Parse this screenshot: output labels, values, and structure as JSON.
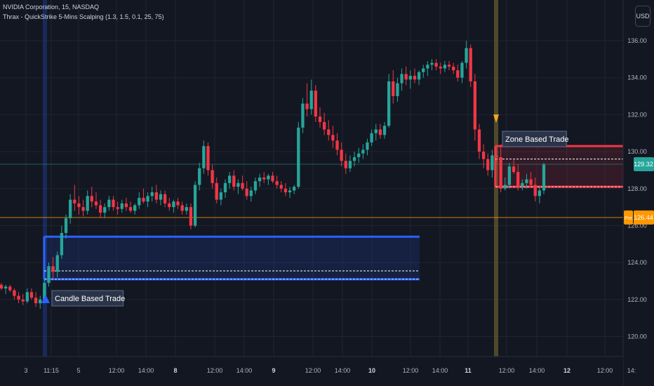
{
  "header": {
    "symbol_line": "NVIDIA Corporation, 15, NASDAQ",
    "indicator_line": "Thrax - QuickStrike 5-Mins Scalping (1.3, 1.5, 0.1, 25, 75)"
  },
  "currency_button": "USD",
  "colors": {
    "background": "#131722",
    "grid": "#1f2430",
    "up": "#26a69a",
    "down": "#f23645",
    "axis_text": "#b2b5be",
    "zone_blue": "#2962ff",
    "zone_red": "#f23645",
    "session_highlight": "#665b2c",
    "session_highlight_blue": "#1e3a8a",
    "prev_close_line": "#ff9800"
  },
  "chart_data": {
    "type": "candlestick",
    "symbol": "NVIDIA Corporation",
    "interval": "15",
    "exchange": "NASDAQ",
    "y_axis": {
      "ticks": [
        "120.00",
        "122.00",
        "124.00",
        "126.00",
        "128.00",
        "130.00",
        "132.00",
        "134.00",
        "136.00"
      ],
      "range": [
        119.2,
        137.0
      ]
    },
    "x_axis": {
      "ticks": [
        "3",
        "11:15",
        "5",
        "12:00",
        "14:00",
        "8",
        "12:00",
        "14:00",
        "9",
        "12:00",
        "14:00",
        "10",
        "12:00",
        "14:00",
        "11",
        "12:00",
        "14:00",
        "12",
        "12:00",
        "14:"
      ],
      "bold_ticks": [
        "8",
        "9",
        "10",
        "11",
        "12"
      ]
    },
    "price_labels": [
      {
        "text": "129.32",
        "value": 129.32,
        "style": "current"
      },
      {
        "text": "126.44",
        "value": 126.44,
        "style": "pre",
        "prefix": "Pre"
      }
    ],
    "annotations": [
      {
        "text": "Candle Based Trade",
        "type": "zone",
        "color": "blue",
        "upper": 125.4,
        "lower": 123.1,
        "entry": 123.55,
        "arrow": "up"
      },
      {
        "text": "Zone Based Trade",
        "type": "zone",
        "color": "red",
        "upper": 130.3,
        "lower": 128.1,
        "entry": 129.6,
        "arrow": "down"
      }
    ],
    "candles": [
      [
        122.8,
        122.9,
        122.5,
        122.6
      ],
      [
        122.6,
        122.8,
        122.3,
        122.7
      ],
      [
        122.7,
        122.8,
        122.4,
        122.5
      ],
      [
        122.5,
        122.6,
        122.0,
        122.2
      ],
      [
        122.2,
        122.4,
        121.8,
        122.0
      ],
      [
        122.0,
        122.3,
        121.7,
        121.9
      ],
      [
        121.9,
        122.6,
        121.8,
        122.4
      ],
      [
        122.4,
        122.6,
        122.0,
        122.1
      ],
      [
        122.1,
        122.4,
        121.6,
        121.8
      ],
      [
        121.8,
        122.2,
        121.5,
        122.0
      ],
      [
        122.0,
        123.2,
        121.8,
        122.9
      ],
      [
        122.9,
        124.0,
        122.7,
        123.8
      ],
      [
        123.8,
        124.3,
        123.1,
        123.5
      ],
      [
        123.5,
        124.6,
        123.2,
        124.4
      ],
      [
        124.4,
        126.0,
        124.2,
        125.6
      ],
      [
        125.6,
        126.6,
        125.3,
        126.4
      ],
      [
        126.4,
        127.7,
        126.1,
        127.4
      ],
      [
        127.4,
        128.2,
        126.8,
        127.2
      ],
      [
        127.2,
        127.6,
        126.6,
        127.0
      ],
      [
        127.0,
        127.4,
        126.5,
        126.8
      ],
      [
        126.8,
        127.9,
        126.6,
        127.6
      ],
      [
        127.6,
        128.1,
        127.0,
        127.3
      ],
      [
        127.3,
        127.8,
        126.9,
        127.1
      ],
      [
        127.1,
        127.4,
        126.4,
        126.7
      ],
      [
        126.7,
        127.2,
        126.4,
        127.0
      ],
      [
        127.0,
        127.6,
        126.8,
        127.4
      ],
      [
        127.4,
        127.6,
        126.8,
        127.0
      ],
      [
        127.0,
        127.3,
        126.6,
        126.9
      ],
      [
        126.9,
        127.4,
        126.7,
        127.2
      ],
      [
        127.2,
        127.5,
        126.8,
        127.0
      ],
      [
        127.0,
        127.3,
        126.7,
        126.8
      ],
      [
        126.8,
        127.2,
        126.6,
        127.1
      ],
      [
        127.1,
        127.8,
        126.9,
        127.5
      ],
      [
        127.5,
        128.0,
        127.2,
        127.3
      ],
      [
        127.3,
        127.8,
        127.0,
        127.6
      ],
      [
        127.6,
        128.1,
        127.3,
        127.8
      ],
      [
        127.8,
        128.2,
        127.2,
        127.4
      ],
      [
        127.4,
        127.9,
        127.1,
        127.7
      ],
      [
        127.7,
        127.9,
        127.0,
        127.2
      ],
      [
        127.2,
        127.5,
        126.8,
        127.0
      ],
      [
        127.0,
        127.4,
        126.7,
        127.3
      ],
      [
        127.3,
        127.5,
        126.9,
        127.1
      ],
      [
        127.1,
        127.3,
        126.6,
        126.8
      ],
      [
        126.8,
        127.2,
        126.6,
        127.0
      ],
      [
        127.0,
        127.2,
        125.8,
        126.0
      ],
      [
        126.0,
        128.4,
        125.9,
        128.2
      ],
      [
        128.2,
        129.4,
        127.9,
        129.1
      ],
      [
        129.1,
        130.6,
        128.8,
        130.3
      ],
      [
        130.3,
        130.5,
        128.7,
        129.0
      ],
      [
        129.0,
        129.3,
        128.0,
        128.3
      ],
      [
        128.3,
        128.6,
        127.2,
        127.4
      ],
      [
        127.4,
        128.0,
        127.1,
        127.8
      ],
      [
        127.8,
        128.5,
        127.5,
        128.3
      ],
      [
        128.3,
        128.9,
        128.0,
        128.7
      ],
      [
        128.7,
        129.0,
        127.9,
        128.1
      ],
      [
        128.1,
        128.5,
        127.7,
        128.3
      ],
      [
        128.3,
        128.7,
        127.9,
        128.0
      ],
      [
        128.0,
        128.4,
        127.4,
        127.6
      ],
      [
        127.6,
        128.1,
        127.3,
        127.9
      ],
      [
        127.9,
        128.6,
        127.7,
        128.4
      ],
      [
        128.4,
        128.8,
        128.1,
        128.6
      ],
      [
        128.6,
        128.9,
        128.3,
        128.5
      ],
      [
        128.5,
        128.8,
        128.2,
        128.7
      ],
      [
        128.7,
        128.9,
        128.3,
        128.4
      ],
      [
        128.4,
        128.7,
        128.0,
        128.2
      ],
      [
        128.2,
        128.4,
        127.8,
        128.0
      ],
      [
        128.0,
        128.3,
        127.6,
        127.8
      ],
      [
        127.8,
        128.1,
        127.5,
        127.9
      ],
      [
        127.9,
        128.2,
        127.7,
        128.1
      ],
      [
        128.1,
        131.6,
        128.0,
        131.3
      ],
      [
        131.3,
        132.9,
        131.0,
        132.6
      ],
      [
        132.6,
        133.7,
        131.9,
        132.3
      ],
      [
        132.3,
        133.9,
        132.0,
        133.3
      ],
      [
        133.3,
        133.6,
        131.6,
        131.9
      ],
      [
        131.9,
        132.4,
        131.3,
        131.6
      ],
      [
        131.6,
        132.1,
        130.9,
        131.2
      ],
      [
        131.2,
        131.7,
        130.6,
        130.9
      ],
      [
        130.9,
        131.4,
        130.2,
        130.6
      ],
      [
        130.6,
        131.0,
        129.8,
        130.1
      ],
      [
        130.1,
        130.5,
        129.2,
        129.5
      ],
      [
        129.5,
        129.9,
        128.8,
        129.1
      ],
      [
        129.1,
        129.8,
        128.9,
        129.5
      ],
      [
        129.5,
        130.0,
        129.2,
        129.7
      ],
      [
        129.7,
        130.2,
        129.4,
        129.9
      ],
      [
        129.9,
        130.4,
        129.6,
        130.1
      ],
      [
        130.1,
        130.7,
        129.8,
        130.5
      ],
      [
        130.5,
        131.2,
        130.3,
        131.0
      ],
      [
        131.0,
        131.5,
        130.6,
        131.2
      ],
      [
        131.2,
        131.5,
        130.7,
        130.9
      ],
      [
        130.9,
        131.6,
        130.7,
        131.4
      ],
      [
        131.4,
        134.2,
        131.3,
        133.8
      ],
      [
        133.8,
        134.4,
        132.6,
        133.0
      ],
      [
        133.0,
        134.0,
        132.7,
        133.7
      ],
      [
        133.7,
        134.5,
        133.3,
        134.2
      ],
      [
        134.2,
        134.6,
        133.6,
        133.9
      ],
      [
        133.9,
        134.4,
        133.4,
        134.1
      ],
      [
        134.1,
        134.5,
        133.7,
        133.9
      ],
      [
        133.9,
        134.4,
        133.6,
        134.3
      ],
      [
        134.3,
        134.7,
        134.0,
        134.5
      ],
      [
        134.5,
        134.9,
        134.1,
        134.7
      ],
      [
        134.7,
        135.0,
        134.4,
        134.8
      ],
      [
        134.8,
        135.0,
        134.4,
        134.6
      ],
      [
        134.6,
        134.8,
        134.2,
        134.5
      ],
      [
        134.5,
        134.9,
        134.3,
        134.7
      ],
      [
        134.7,
        134.9,
        134.4,
        134.6
      ],
      [
        134.6,
        134.8,
        134.2,
        134.4
      ],
      [
        134.4,
        134.7,
        133.8,
        134.0
      ],
      [
        134.0,
        134.9,
        133.7,
        134.8
      ],
      [
        134.8,
        136.0,
        134.5,
        135.6
      ],
      [
        135.6,
        135.8,
        133.5,
        133.8
      ],
      [
        133.8,
        134.2,
        130.6,
        131.2
      ],
      [
        131.2,
        131.5,
        129.6,
        130.0
      ],
      [
        130.0,
        130.4,
        129.1,
        129.6
      ],
      [
        129.6,
        129.9,
        128.7,
        129.0
      ],
      [
        129.0,
        130.1,
        128.6,
        129.8
      ],
      [
        129.8,
        130.3,
        129.4,
        129.7
      ],
      [
        129.7,
        130.4,
        127.8,
        128.0
      ],
      [
        128.0,
        128.6,
        127.9,
        128.2
      ],
      [
        128.2,
        129.4,
        128.0,
        129.2
      ],
      [
        129.2,
        129.6,
        128.8,
        128.9
      ],
      [
        128.9,
        129.3,
        127.9,
        128.1
      ],
      [
        128.1,
        128.5,
        127.9,
        128.3
      ],
      [
        128.3,
        128.8,
        128.0,
        128.5
      ],
      [
        128.5,
        128.9,
        128.1,
        128.2
      ],
      [
        128.2,
        128.6,
        127.3,
        127.6
      ],
      [
        127.6,
        128.1,
        127.2,
        127.9
      ],
      [
        127.9,
        129.4,
        127.7,
        129.3
      ]
    ]
  }
}
